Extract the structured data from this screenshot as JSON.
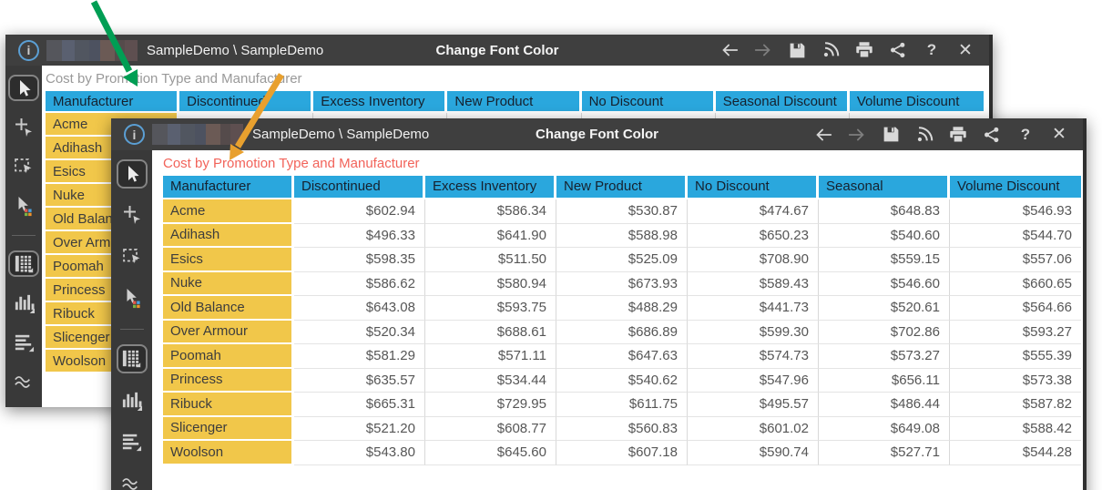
{
  "titlebar": {
    "breadcrumb": "SampleDemo \\ SampleDemo",
    "command_title": "Change Font Color",
    "icons": [
      {
        "name": "back-arrow",
        "enabled": true
      },
      {
        "name": "forward-arrow",
        "enabled": false
      },
      {
        "name": "save",
        "enabled": true
      },
      {
        "name": "feed",
        "enabled": true
      },
      {
        "name": "print",
        "enabled": true
      },
      {
        "name": "share",
        "enabled": true
      },
      {
        "name": "help",
        "enabled": true
      },
      {
        "name": "close",
        "enabled": true
      }
    ],
    "redacted_blocks": [
      {
        "color": "#55565c",
        "w": 17
      },
      {
        "color": "#5a6070",
        "w": 14
      },
      {
        "color": "#515660",
        "w": 16
      },
      {
        "color": "#4d5260",
        "w": 12
      },
      {
        "color": "#6b5a55",
        "w": 16
      },
      {
        "color": "#554b4b",
        "w": 11
      },
      {
        "color": "#5e4f50",
        "w": 14
      }
    ]
  },
  "report": {
    "title": "Cost by Promotion Type and Manufacturer",
    "back_title_color": "#999999",
    "front_title_color": "#f2635a"
  },
  "sidebar": {
    "tools": [
      {
        "name": "cursor-tool",
        "selected": true
      },
      {
        "name": "add-pointer-tool",
        "selected": false
      },
      {
        "name": "marquee-select-tool",
        "selected": false
      },
      {
        "name": "highlight-pointer-tool",
        "selected": false
      },
      {
        "name": "divider"
      },
      {
        "name": "grid-view-tool",
        "selected": true
      },
      {
        "name": "bar-chart-view-tool",
        "selected": false
      },
      {
        "name": "text-view-tool",
        "selected": false
      },
      {
        "name": "wave-view-tool",
        "selected": false
      }
    ]
  },
  "table": {
    "headers": [
      "Manufacturer",
      "Discontinued Product",
      "Excess Inventory",
      "New Product",
      "No Discount",
      "Seasonal Discount",
      "Volume Discount"
    ],
    "rows": [
      {
        "name": "Acme",
        "values": [
          "$602.94",
          "$586.34",
          "$530.87",
          "$474.67",
          "$648.83",
          "$546.93"
        ]
      },
      {
        "name": "Adihash",
        "values": [
          "$496.33",
          "$641.90",
          "$588.98",
          "$650.23",
          "$540.60",
          "$544.70"
        ]
      },
      {
        "name": "Esics",
        "values": [
          "$598.35",
          "$511.50",
          "$525.09",
          "$708.90",
          "$559.15",
          "$557.06"
        ]
      },
      {
        "name": "Nuke",
        "values": [
          "$586.62",
          "$580.94",
          "$673.93",
          "$589.43",
          "$546.60",
          "$660.65"
        ]
      },
      {
        "name": "Old Balance",
        "values": [
          "$643.08",
          "$593.75",
          "$488.29",
          "$441.73",
          "$520.61",
          "$564.66"
        ]
      },
      {
        "name": "Over Armour",
        "values": [
          "$520.34",
          "$688.61",
          "$686.89",
          "$599.30",
          "$702.86",
          "$593.27"
        ]
      },
      {
        "name": "Poomah",
        "values": [
          "$581.29",
          "$571.11",
          "$647.63",
          "$574.73",
          "$573.27",
          "$555.39"
        ]
      },
      {
        "name": "Princess",
        "values": [
          "$635.57",
          "$534.44",
          "$540.62",
          "$547.96",
          "$656.11",
          "$573.38"
        ]
      },
      {
        "name": "Ribuck",
        "values": [
          "$665.31",
          "$729.95",
          "$611.75",
          "$495.57",
          "$486.44",
          "$587.82"
        ]
      },
      {
        "name": "Slicenger",
        "values": [
          "$521.20",
          "$608.77",
          "$560.83",
          "$601.02",
          "$649.08",
          "$588.42"
        ]
      },
      {
        "name": "Woolson",
        "values": [
          "$543.80",
          "$645.60",
          "$607.18",
          "$590.74",
          "$527.71",
          "$544.28"
        ]
      }
    ]
  },
  "colors": {
    "header_bg": "#2aa7dd",
    "row_label_bg": "#f1c74a",
    "titlebar_bg": "#3f3f3f",
    "sidebar_bg": "#393939",
    "green_arrow": "#009e54",
    "orange_arrow": "#e8a02e"
  }
}
